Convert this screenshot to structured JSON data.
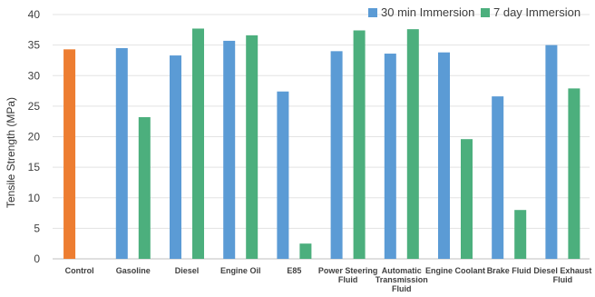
{
  "chart_data": {
    "type": "bar",
    "title": "",
    "xlabel": "",
    "ylabel": "Tensile Strength (MPa)",
    "ylim": [
      0,
      40
    ],
    "yticks": [
      0,
      5,
      10,
      15,
      20,
      25,
      30,
      35,
      40
    ],
    "grid": true,
    "legend_position": "top-right",
    "categories": [
      "Control",
      "Gasoline",
      "Diesel",
      "Engine Oil",
      "E85",
      "Power Steering Fluid",
      "Automatic Transmission Fluid",
      "Engine Coolant",
      "Brake Fluid",
      "Diesel Exhaust Fluid"
    ],
    "category_label_lines": [
      [
        "Control"
      ],
      [
        "Gasoline"
      ],
      [
        "Diesel"
      ],
      [
        "Engine Oil"
      ],
      [
        "E85"
      ],
      [
        "Power Steering",
        "Fluid"
      ],
      [
        "Automatic",
        "Transmission",
        "Fluid"
      ],
      [
        "Engine Coolant"
      ],
      [
        "Brake Fluid"
      ],
      [
        "Diesel Exhaust",
        "Fluid"
      ]
    ],
    "control": {
      "value": 34.3,
      "color": "#ED7D31"
    },
    "series": [
      {
        "name": "30 min Immersion",
        "color": "#5B9BD5",
        "values": [
          null,
          34.5,
          33.3,
          35.7,
          27.4,
          34.0,
          33.6,
          33.8,
          26.6,
          35.0
        ]
      },
      {
        "name": "7 day Immersion",
        "color": "#4CAF7D",
        "values": [
          null,
          23.2,
          37.7,
          36.6,
          2.5,
          37.4,
          37.6,
          19.6,
          8.0,
          27.9
        ]
      }
    ]
  }
}
